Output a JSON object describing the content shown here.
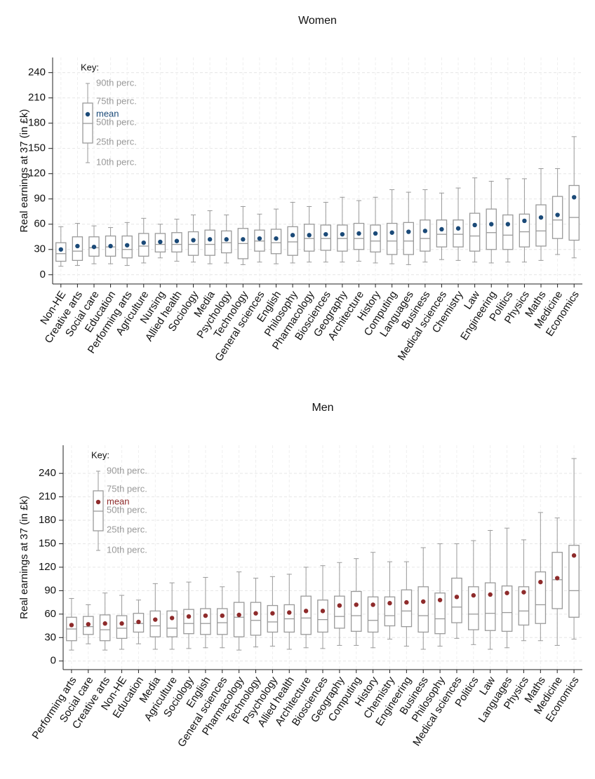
{
  "chart_data": [
    {
      "type": "box",
      "title": "Women",
      "y_label": "Real earnings at 37 (in £k)",
      "categories": [
        "Non-HE",
        "Creative arts",
        "Social care",
        "Education",
        "Performing arts",
        "Agriculture",
        "Nursing",
        "Allied health",
        "Sociology",
        "Media",
        "Psychology",
        "Technology",
        "General sciences",
        "English",
        "Philosophy",
        "Pharmacology",
        "Biosciences",
        "Geography",
        "Architecture",
        "History",
        "Computing",
        "Languages",
        "Business",
        "Medical sciences",
        "Chemistry",
        "Law",
        "Engineering",
        "Politics",
        "Physics",
        "Maths",
        "Medicine",
        "Economics"
      ],
      "p10": [
        10,
        11,
        13,
        13,
        11,
        14,
        20,
        16,
        15,
        13,
        14,
        12,
        15,
        13,
        14,
        15,
        15,
        15,
        16,
        14,
        13,
        12,
        15,
        18,
        17,
        15,
        14,
        15,
        15,
        17,
        24,
        20
      ],
      "p25": [
        16,
        17,
        22,
        22,
        20,
        22,
        27,
        27,
        23,
        23,
        26,
        19,
        28,
        25,
        23,
        28,
        29,
        28,
        30,
        27,
        24,
        24,
        28,
        33,
        33,
        28,
        30,
        30,
        33,
        34,
        43,
        41
      ],
      "median": [
        25,
        28,
        32,
        33,
        30,
        34,
        36,
        36,
        36,
        36,
        38,
        37,
        40,
        38,
        39,
        43,
        43,
        43,
        43,
        40,
        40,
        40,
        43,
        48,
        48,
        46,
        50,
        47,
        51,
        52,
        65,
        68
      ],
      "p75": [
        38,
        45,
        45,
        46,
        46,
        49,
        49,
        50,
        51,
        53,
        52,
        55,
        53,
        54,
        57,
        60,
        59,
        59,
        61,
        59,
        61,
        62,
        65,
        65,
        65,
        73,
        78,
        71,
        72,
        83,
        93,
        106
      ],
      "p90": [
        57,
        61,
        58,
        56,
        62,
        67,
        60,
        66,
        71,
        76,
        71,
        81,
        72,
        78,
        86,
        81,
        86,
        92,
        88,
        92,
        101,
        98,
        101,
        97,
        103,
        115,
        111,
        114,
        114,
        126,
        126,
        164
      ],
      "mean": [
        30,
        34,
        33,
        34,
        35,
        38,
        39,
        40,
        41,
        42,
        42,
        42,
        43,
        43,
        47,
        47,
        48,
        48,
        49,
        49,
        50,
        51,
        52,
        54,
        55,
        59,
        60,
        60,
        64,
        68,
        71,
        92
      ],
      "box_color": "#9a9a9a",
      "mean_color": "#1b4a78",
      "ylim": [
        -11,
        258
      ],
      "yticks": [
        0,
        30,
        60,
        90,
        120,
        150,
        180,
        210,
        240
      ],
      "grid": true,
      "key": {
        "title": "Key:",
        "labels": [
          "90th perc.",
          "75th perc.",
          "mean",
          "50th perc.",
          "25th perc.",
          "10th perc."
        ]
      }
    },
    {
      "type": "box",
      "title": "Men",
      "y_label": "Real earnings at 37 (in £k)",
      "categories": [
        "Performing arts",
        "Social care",
        "Creative arts",
        "Non-HE",
        "Education",
        "Media",
        "Agriculture",
        "Sociology",
        "English",
        "General sciences",
        "Pharmacology",
        "Technology",
        "Psychology",
        "Allied health",
        "Architecture",
        "Biosciences",
        "Geography",
        "Computing",
        "History",
        "Chemistry",
        "Engineering",
        "Business",
        "Philosophy",
        "Medical sciences",
        "Politics",
        "Law",
        "Languages",
        "Physics",
        "Maths",
        "Medicine",
        "Economics"
      ],
      "p10": [
        14,
        22,
        14,
        15,
        22,
        15,
        15,
        16,
        17,
        17,
        14,
        18,
        19,
        15,
        17,
        16,
        20,
        20,
        17,
        28,
        19,
        15,
        19,
        29,
        21,
        15,
        17,
        26,
        26,
        20,
        28
      ],
      "p25": [
        26,
        34,
        26,
        29,
        37,
        31,
        31,
        35,
        34,
        34,
        31,
        33,
        37,
        37,
        34,
        37,
        42,
        38,
        37,
        45,
        44,
        37,
        35,
        49,
        40,
        39,
        38,
        46,
        48,
        67,
        56
      ],
      "median": [
        41,
        44,
        40,
        42,
        48,
        45,
        42,
        48,
        48,
        49,
        56,
        52,
        50,
        54,
        55,
        53,
        57,
        58,
        52,
        58,
        64,
        58,
        54,
        69,
        60,
        61,
        62,
        64,
        72,
        104,
        90
      ],
      "p75": [
        56,
        57,
        59,
        58,
        61,
        64,
        64,
        66,
        67,
        67,
        75,
        75,
        71,
        72,
        83,
        78,
        83,
        89,
        82,
        82,
        91,
        95,
        87,
        106,
        95,
        100,
        96,
        95,
        114,
        139,
        148
      ],
      "p90": [
        80,
        72,
        87,
        84,
        78,
        99,
        100,
        101,
        107,
        95,
        114,
        106,
        108,
        111,
        120,
        122,
        126,
        131,
        139,
        127,
        127,
        145,
        150,
        150,
        154,
        167,
        170,
        155,
        190,
        183,
        259
      ],
      "mean": [
        46,
        47,
        48,
        48,
        50,
        53,
        55,
        57,
        58,
        58,
        59,
        61,
        61,
        62,
        64,
        64,
        71,
        72,
        72,
        74,
        75,
        76,
        78,
        82,
        84,
        85,
        87,
        88,
        101,
        106,
        135
      ],
      "box_color": "#9a9a9a",
      "mean_color": "#8e2b2b",
      "ylim": [
        -11,
        276
      ],
      "yticks": [
        0,
        30,
        60,
        90,
        120,
        150,
        180,
        210,
        240
      ],
      "grid": true,
      "key": {
        "title": "Key:",
        "labels": [
          "90th perc.",
          "75th perc.",
          "mean",
          "50th perc.",
          "25th perc.",
          "10th perc."
        ]
      }
    }
  ]
}
